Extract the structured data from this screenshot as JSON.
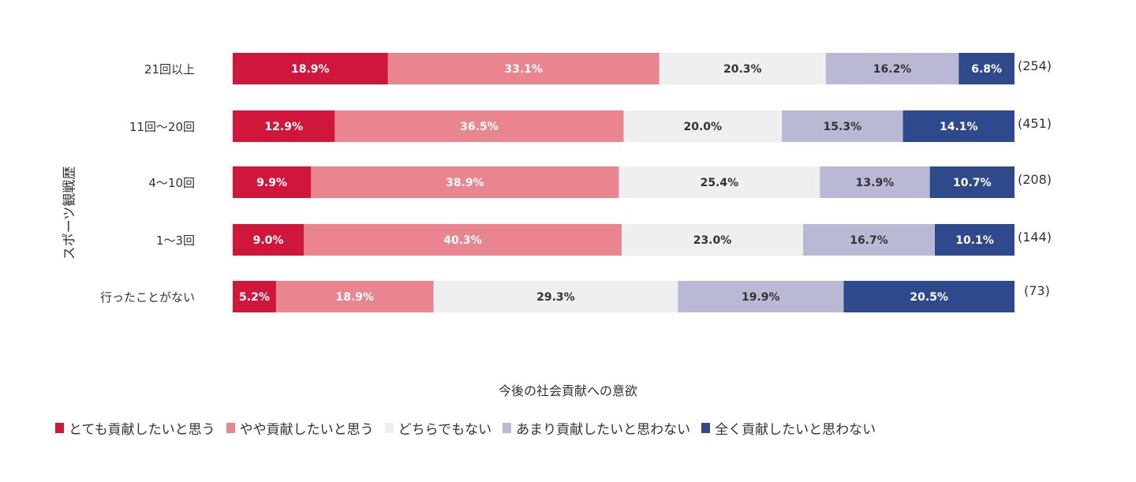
{
  "chart_data": {
    "type": "bar",
    "orientation": "horizontal",
    "stacked": true,
    "normalized": true,
    "ylabel": "スポーツ観戦歴",
    "xlabel": "今後の社会貢献への意欲",
    "categories": [
      "21回以上",
      "11回〜20回",
      "4〜10回",
      "1〜3回",
      "行ったことがない"
    ],
    "counts": [
      "(254)",
      "(451)",
      "(208)",
      "(144)",
      "(73)"
    ],
    "series": [
      {
        "name": "とても貢献したいと思う",
        "color": "#d0163a",
        "text_color": "#ffffff",
        "values": [
          18.9,
          12.9,
          9.9,
          9.0,
          5.2
        ],
        "labels": [
          "18.9%",
          "12.9%",
          "9.9%",
          "9.0%",
          "5.2%"
        ]
      },
      {
        "name": "やや貢献したいと思う",
        "color": "#e9858f",
        "text_color": "#ffffff",
        "values": [
          33.1,
          36.5,
          38.9,
          40.3,
          18.9
        ],
        "labels": [
          "33.1%",
          "36.5%",
          "38.9%",
          "40.3%",
          "18.9%"
        ]
      },
      {
        "name": "どちらでもない",
        "color": "#efefef",
        "text_color": "#333333",
        "values": [
          20.3,
          20.0,
          25.4,
          23.0,
          29.3
        ],
        "labels": [
          "20.3%",
          "20.0%",
          "25.4%",
          "23.0%",
          "29.3%"
        ]
      },
      {
        "name": "あまり貢献したいと思わない",
        "color": "#b9b9d5",
        "text_color": "#333333",
        "values": [
          16.2,
          15.3,
          13.9,
          16.7,
          19.9
        ],
        "labels": [
          "16.2%",
          "15.3%",
          "13.9%",
          "16.7%",
          "19.9%"
        ]
      },
      {
        "name": "全く貢献したいと思わない",
        "color": "#2f4a8c",
        "text_color": "#ffffff",
        "values": [
          6.8,
          14.1,
          10.7,
          10.1,
          20.5
        ],
        "labels": [
          "6.8%",
          "14.1%",
          "10.7%",
          "10.1%",
          "20.5%"
        ]
      }
    ],
    "legend_position": "bottom",
    "grid": false
  }
}
